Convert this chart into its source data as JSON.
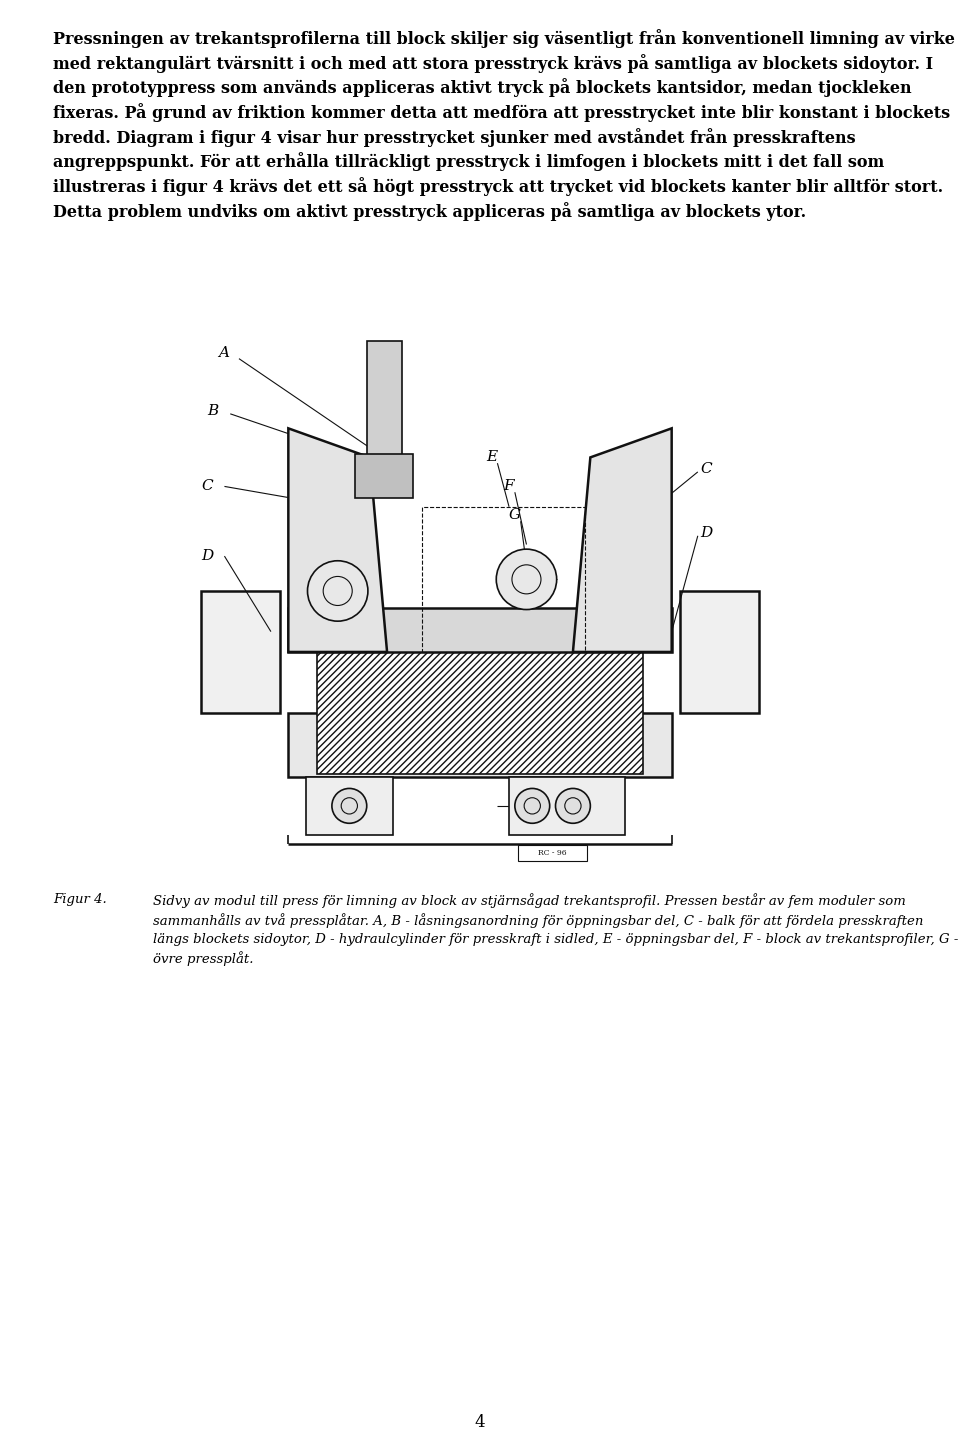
{
  "background_color": "#ffffff",
  "page_number": "4",
  "body_text": "Pressningen av trekantsprofilerna till block skiljer sig väsentligt från konventionell limning av virke med rektangulärt tvärsnitt i och med att stora presstryck krävs på samtliga av blockets sidoytor. I den prototyppress som används appliceras aktivt tryck på blockets kantsidor, medan tjockleken fixeras. På grund av friktion kommer detta att medföra att presstrycket inte blir konstant i blockets bredd. Diagram i figur 4 visar hur presstrycket sjunker med avståndet från presskraftens angreppspunkt. För att erhålla tillräckligt presstryck i limfogen i blockets mitt i det fall som illustreras i figur 4 krävs det ett så högt presstryck att trycket vid blockets kanter blir alltför stort. Detta problem undviks om aktivt presstryck appliceras på samtliga av blockets ytor.",
  "figure_label": "Figur 4.",
  "figure_caption": "Sidvy av modul till press för limning av block av stjärnsågad trekantsprofil. Pressen består av fem moduler som sammanhålls av två pressplåtar. A, B - låsningsanordning för öppningsbar del, C - balk för att fördela presskraften längs blockets sidoytor, D - hydraulcylinder för presskraft i sidled, E - öppningsbar del, F - block av trekantsprofiler, G - övre pressplåt.",
  "text_font_size": 11.5,
  "caption_font_size": 9.5,
  "label_font_size": 11,
  "text_color": "#000000",
  "line_color": "#111111"
}
